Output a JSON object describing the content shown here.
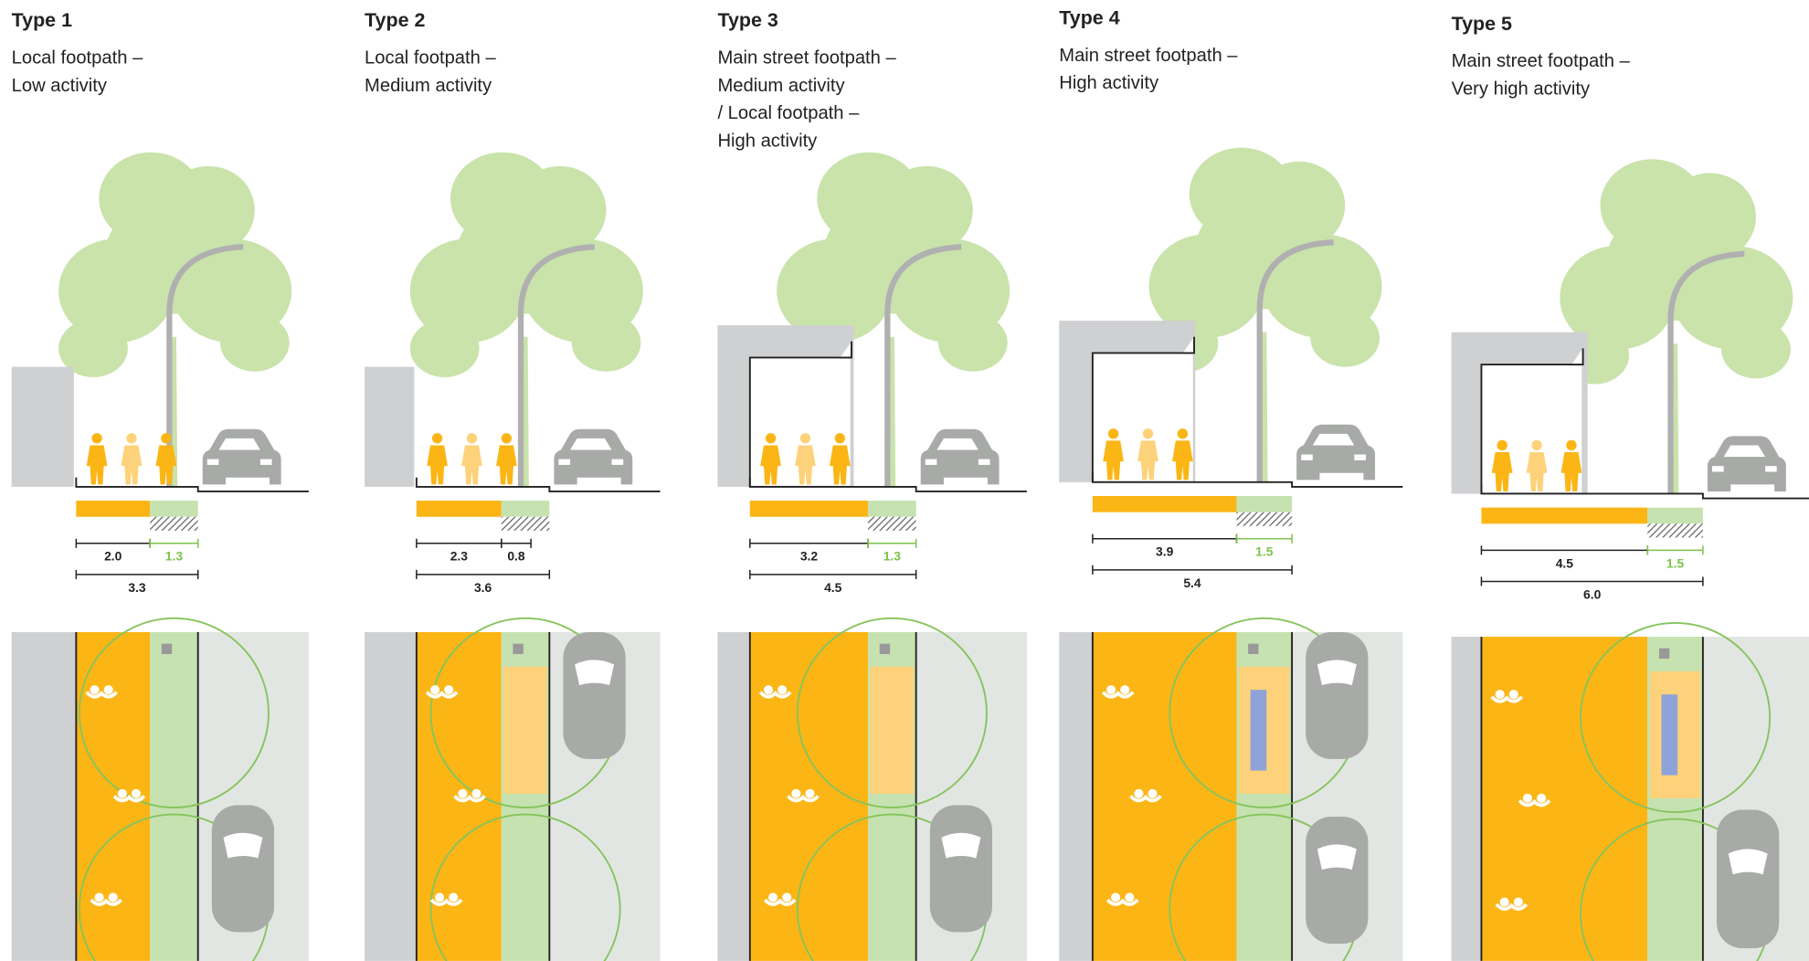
{
  "columns": [
    {
      "title": "Type 1",
      "description": [
        "Local footpath –",
        "Low activity"
      ],
      "footpath": {
        "value": 2,
        "label": "2.0"
      },
      "berm": 1.3,
      "total": 3.3
    },
    {
      "title": "Type 2",
      "description": [
        "Local footpath –",
        "Medium activity"
      ],
      "footpath": 2.3,
      "berm": 0.8,
      "total": 3.6
    },
    {
      "title": "Type 3",
      "description": [
        "Main street footpath –",
        "Medium activity",
        "/ Local footpath –",
        "High activity"
      ],
      "footpath": 3.2,
      "berm": 1.3,
      "total": 4.5
    },
    {
      "title": "Type 4",
      "description": [
        "Main street footpath –",
        "High activity"
      ],
      "footpath": 3.9,
      "berm": 1.5,
      "total": 5.4
    },
    {
      "title": "Type 5",
      "description": [
        "Main street footpath –",
        "Very high activity"
      ],
      "footpath": 4.5,
      "berm": 1.5,
      "total": {
        "value": 6,
        "label": "6.0"
      }
    }
  ]
}
